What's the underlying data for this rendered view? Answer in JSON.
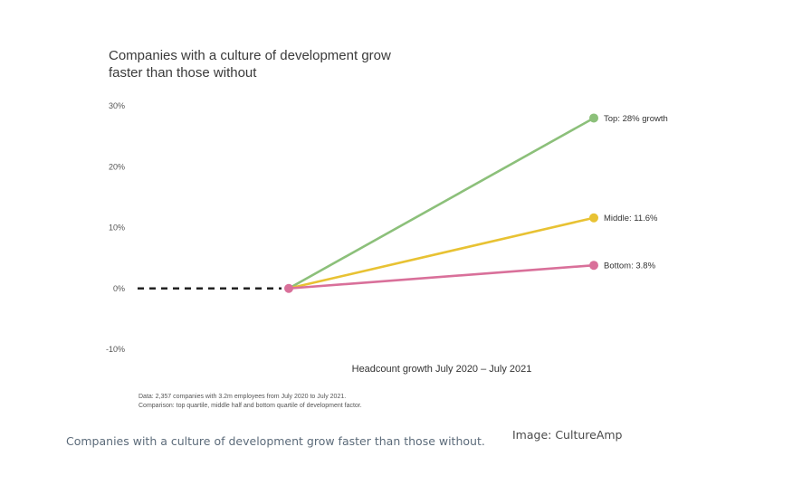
{
  "chart_data": {
    "type": "line",
    "title": "Companies with a culture of development grow faster than those without",
    "xlabel": "Headcount growth July 2020 – July 2021",
    "ylabel": "",
    "ylim": [
      -10,
      30
    ],
    "yticks": [
      30,
      20,
      10,
      0,
      -10
    ],
    "ytick_labels": [
      "30%",
      "20%",
      "10%",
      "0%",
      "-10%"
    ],
    "x": [
      "July 2020",
      "July 2021"
    ],
    "baseline": {
      "style": "dashed",
      "color": "#222222",
      "value": 0
    },
    "series": [
      {
        "name": "Top",
        "label": "Top: 28% growth",
        "values": [
          0,
          28
        ],
        "color": "#8cc07a"
      },
      {
        "name": "Middle",
        "label": "Middle: 11.6%",
        "values": [
          0,
          11.6
        ],
        "color": "#e8c233"
      },
      {
        "name": "Bottom",
        "label": "Bottom: 3.8%",
        "values": [
          0,
          3.8
        ],
        "color": "#d9709a"
      }
    ],
    "origin_color": "#d9709a",
    "grid": false,
    "legend": "none"
  },
  "notes": {
    "line1": "Data: 2,357 companies with 3.2m employees from July 2020 to July 2021.",
    "line2": "Comparison: top quartile, middle half and bottom quartile of development factor."
  },
  "caption": "Companies with a culture of development grow faster than those without.",
  "credit": "Image: CultureAmp"
}
